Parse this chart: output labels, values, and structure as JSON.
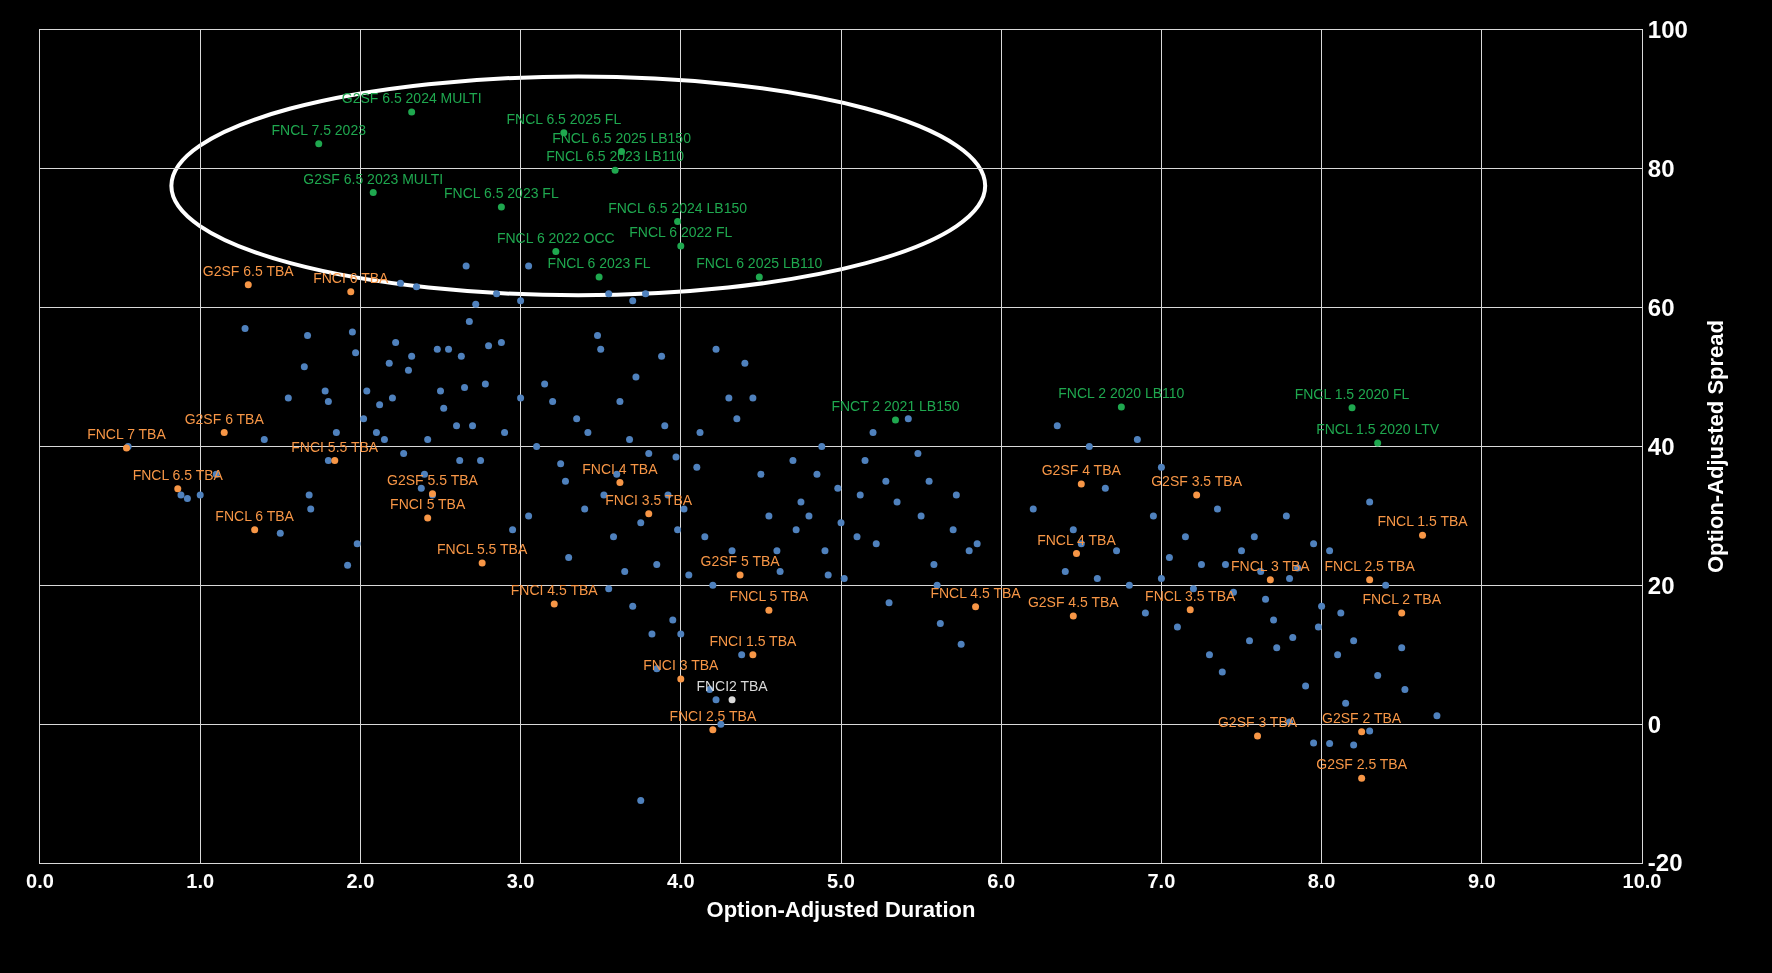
{
  "chart_data": {
    "type": "scatter",
    "xlabel": "Option-Adjusted Duration",
    "ylabel": "Option-Adjusted Spread",
    "xlim": [
      0,
      10
    ],
    "ylim": [
      -20,
      100
    ],
    "xticks": [
      {
        "value": 0,
        "label": "0.0"
      },
      {
        "value": 1,
        "label": "1.0"
      },
      {
        "value": 2,
        "label": "2.0"
      },
      {
        "value": 3,
        "label": "3.0"
      },
      {
        "value": 4,
        "label": "4.0"
      },
      {
        "value": 5,
        "label": "5.0"
      },
      {
        "value": 6,
        "label": "6.0"
      },
      {
        "value": 7,
        "label": "7.0"
      },
      {
        "value": 8,
        "label": "8.0"
      },
      {
        "value": 9,
        "label": "9.0"
      },
      {
        "value": 10,
        "label": "10.0"
      }
    ],
    "yticks": [
      -20,
      0,
      20,
      40,
      60,
      80,
      100
    ],
    "grid": true,
    "marker": "circle",
    "series": [
      {
        "color": "#4f81bd",
        "x": [
          0.55,
          0.88,
          0.92,
          1.1,
          1.0,
          1.28,
          1.4,
          1.55,
          1.65,
          1.67,
          1.68,
          1.69,
          1.78,
          1.8,
          1.8,
          1.85,
          1.5,
          1.92,
          1.95,
          1.97,
          1.98,
          2.02,
          2.04,
          2.1,
          2.12,
          2.15,
          2.18,
          2.2,
          2.22,
          2.25,
          2.27,
          2.3,
          2.32,
          2.35,
          2.38,
          2.4,
          2.42,
          2.45,
          2.48,
          2.5,
          2.52,
          2.55,
          2.6,
          2.62,
          2.63,
          2.65,
          2.66,
          2.68,
          2.7,
          2.72,
          2.75,
          2.78,
          2.8,
          2.85,
          2.88,
          2.9,
          2.95,
          3.0,
          3.0,
          3.05,
          3.1,
          3.15,
          3.2,
          3.25,
          3.28,
          3.3,
          3.35,
          3.4,
          3.42,
          3.48,
          3.5,
          3.52,
          3.55,
          3.58,
          3.6,
          3.62,
          3.65,
          3.68,
          3.7,
          3.72,
          3.75,
          3.75,
          3.78,
          3.8,
          3.82,
          3.85,
          3.85,
          3.88,
          3.9,
          3.92,
          3.95,
          3.97,
          3.98,
          4.0,
          4.02,
          4.05,
          4.1,
          4.12,
          4.15,
          4.18,
          4.2,
          4.22,
          4.22,
          4.25,
          4.3,
          4.32,
          4.35,
          4.38,
          4.4,
          4.45,
          4.5,
          4.55,
          4.6,
          4.62,
          4.7,
          4.72,
          4.75,
          4.8,
          4.85,
          4.88,
          4.9,
          4.92,
          4.98,
          5.0,
          5.02,
          5.1,
          5.12,
          5.15,
          5.2,
          5.22,
          5.28,
          5.3,
          5.35,
          5.42,
          5.48,
          5.5,
          5.55,
          5.58,
          5.6,
          5.62,
          5.7,
          5.72,
          5.75,
          5.8,
          5.85,
          6.2,
          6.35,
          6.4,
          6.45,
          6.5,
          6.55,
          6.6,
          6.65,
          6.72,
          6.8,
          6.85,
          6.9,
          6.95,
          7.0,
          7.0,
          7.05,
          7.1,
          7.15,
          7.2,
          7.25,
          7.3,
          7.35,
          7.38,
          7.4,
          7.45,
          7.5,
          7.55,
          7.58,
          7.62,
          7.65,
          7.7,
          7.72,
          7.78,
          7.8,
          7.82,
          7.85,
          7.9,
          7.95,
          7.98,
          8.0,
          8.05,
          8.1,
          8.12,
          8.15,
          8.2,
          8.3,
          8.35,
          8.4,
          8.5,
          8.52,
          8.72,
          7.8,
          8.05,
          8.2,
          7.95,
          8.3,
          3.7,
          3.05,
          3.55
        ],
        "values": [
          40,
          33,
          32.5,
          36,
          33,
          57,
          41,
          47,
          51.5,
          56,
          33,
          31,
          48,
          46.5,
          38,
          42,
          27.5,
          22.9,
          56.5,
          53.5,
          26,
          44,
          48,
          42,
          46,
          41,
          52,
          47,
          55,
          63.5,
          39,
          51,
          53,
          63,
          34,
          36,
          41,
          33,
          54,
          48,
          45.5,
          54,
          43,
          38,
          53,
          48.5,
          66,
          58,
          43,
          60.5,
          38,
          49,
          54.5,
          62,
          55,
          42,
          28,
          47,
          61,
          30,
          40,
          49,
          46.5,
          37.5,
          35,
          24,
          44,
          31,
          42,
          56,
          54,
          33,
          19.5,
          27,
          36,
          46.5,
          22,
          41,
          17,
          50,
          29,
          -11,
          62,
          39,
          13,
          8,
          23,
          53,
          43,
          33,
          15,
          38.5,
          28,
          13,
          31,
          21.5,
          37,
          42,
          27,
          5,
          20,
          3.5,
          54,
          0,
          47,
          25,
          44,
          10,
          52,
          47,
          36,
          30,
          25,
          22,
          38,
          28,
          32,
          30,
          36,
          40,
          25,
          21.5,
          34,
          29,
          21,
          27,
          33,
          38,
          42,
          26,
          35,
          17.5,
          32,
          44,
          39,
          30,
          35,
          23,
          20,
          14.5,
          28,
          33,
          11.5,
          25,
          26,
          31,
          43,
          22,
          28,
          26,
          40,
          21,
          34,
          25,
          20,
          41,
          16,
          30,
          37,
          21,
          24,
          14,
          27,
          19.5,
          23,
          10,
          31,
          7.5,
          23,
          19,
          25,
          12,
          27,
          22,
          18,
          15,
          11,
          30,
          21,
          12.5,
          22.5,
          5.5,
          26,
          14,
          17,
          25,
          10,
          16,
          3,
          12,
          32,
          7,
          20,
          11,
          5,
          1.2,
          0.3,
          -2.8,
          -3,
          -2.7,
          -1,
          61,
          66,
          62
        ]
      },
      {
        "color": "#1fa84f",
        "marker": "circle",
        "x": [
          2.32,
          1.74,
          3.27,
          3.63,
          3.59,
          2.08,
          2.88,
          3.98,
          4.0,
          3.22,
          3.49,
          4.49,
          5.34,
          6.75,
          8.19,
          8.35
        ],
        "values": [
          88.2,
          83.6,
          85.2,
          82.5,
          79.8,
          76.6,
          74.5,
          72.4,
          68.9,
          68.1,
          64.4,
          64.4,
          43.8,
          45.7,
          45.6,
          40.5
        ],
        "value_labels": [
          "G2SF 6.5 2024 MULTI",
          "FNCL 7.5 2023",
          "FNCL 6.5 2025 FL",
          "FNCL 6.5 2025 LB150",
          "FNCL 6.5 2023 LB110",
          "G2SF 6.5 2023 MULTI",
          "FNCL 6.5 2023 FL",
          "FNCL 6.5 2024 LB150",
          "FNCL 6 2022 FL",
          "FNCL 6 2022 OCC",
          "FNCL 6 2023 FL",
          "FNCL 6 2025 LB110",
          "FNCT 2 2021 LB150",
          "FNCL 2 2020 LB110",
          "FNCL 1.5 2020 FL",
          "FNCL 1.5 2020 LTV"
        ]
      },
      {
        "color": "#f79646",
        "marker": "circle",
        "x": [
          1.3,
          1.94,
          0.54,
          1.15,
          1.84,
          0.86,
          2.45,
          2.42,
          1.34,
          2.76,
          3.21,
          3.62,
          3.8,
          4.37,
          4.55,
          4.45,
          4.0,
          4.2,
          5.84,
          6.45,
          6.5,
          6.47,
          7.22,
          7.18,
          7.68,
          8.3,
          8.63,
          8.5,
          7.6,
          8.25,
          8.25
        ],
        "values": [
          63.3,
          62.3,
          39.8,
          42,
          38,
          33.9,
          33.2,
          29.7,
          28,
          23.2,
          17.3,
          34.8,
          30.3,
          21.5,
          16.4,
          10,
          6.5,
          -0.8,
          16.9,
          15.6,
          34.6,
          24.6,
          33,
          16.5,
          20.8,
          20.8,
          27.2,
          16,
          -1.7,
          -1.1,
          -7.8
        ],
        "value_labels": [
          "G2SF 6.5 TBA",
          "FNCI 6 TBA",
          "FNCL 7 TBA",
          "G2SF 6 TBA",
          "FNCI 5.5 TBA",
          "FNCL 6.5 TBA",
          "G2SF 5.5 TBA",
          "FNCI 5 TBA",
          "FNCL 6 TBA",
          "FNCL 5.5 TBA",
          "FNCI 4.5 TBA",
          "FNCI 4 TBA",
          "FNCI 3.5 TBA",
          "G2SF 5 TBA",
          "FNCL 5 TBA",
          "FNCI 1.5 TBA",
          "FNCI 3 TBA",
          "FNCI 2.5 TBA",
          "FNCL 4.5 TBA",
          "G2SF 4.5 TBA",
          "G2SF 4 TBA",
          "FNCL 4 TBA",
          "G2SF 3.5 TBA",
          "FNCL 3.5 TBA",
          "FNCL 3 TBA",
          "FNCL 2.5 TBA",
          "FNCL 1.5 TBA",
          "FNCL 2 TBA",
          "G2SF 3 TBA",
          "G2SF 2 TBA",
          "G2SF 2.5 TBA"
        ]
      },
      {
        "color": "#d9d9d9",
        "marker": "circle",
        "x": [
          4.32
        ],
        "values": [
          3.5
        ],
        "value_labels": [
          "FNCI2 TBA"
        ]
      }
    ]
  }
}
